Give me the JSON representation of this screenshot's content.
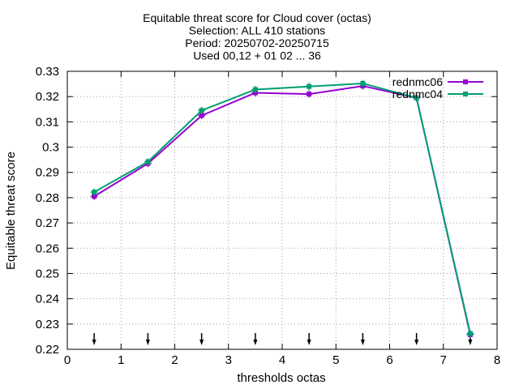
{
  "chart_data": {
    "type": "line",
    "title_lines": [
      "Equitable threat score  for Cloud cover (octas)",
      "Selection: ALL    410 stations",
      "Period: 20250702-20250715",
      "Used 00,12 + 01 02 ... 36"
    ],
    "xlabel": "thresholds octas",
    "ylabel": "Equitable threat score",
    "xlim": [
      0,
      8
    ],
    "ylim": [
      0.22,
      0.33
    ],
    "xticks": [
      0,
      1,
      2,
      3,
      4,
      5,
      6,
      7,
      8
    ],
    "yticks": [
      0.22,
      0.23,
      0.24,
      0.25,
      0.26,
      0.27,
      0.28,
      0.29,
      0.3,
      0.31,
      0.32,
      0.33
    ],
    "ytick_labels": [
      "0.22",
      "0.23",
      "0.24",
      "0.25",
      "0.26",
      "0.27",
      "0.28",
      "0.29",
      "0.3",
      "0.31",
      "0.32",
      "0.33"
    ],
    "grid": true,
    "legend_position": "top-right",
    "x": [
      0.5,
      1.5,
      2.5,
      3.5,
      4.5,
      5.5,
      6.5,
      7.5
    ],
    "series": [
      {
        "name": "rednmc06",
        "color": "#9400d3",
        "values": [
          0.2805,
          0.2935,
          0.3125,
          0.3215,
          0.321,
          0.3242,
          0.3195,
          0.2258
        ]
      },
      {
        "name": "rednmc04",
        "color": "#009e73",
        "values": [
          0.2822,
          0.2942,
          0.3145,
          0.3228,
          0.324,
          0.3252,
          0.3195,
          0.2262
        ]
      }
    ],
    "arrow_markers_x": [
      0.5,
      1.5,
      2.5,
      3.5,
      4.5,
      5.5,
      6.5,
      7.5
    ]
  }
}
